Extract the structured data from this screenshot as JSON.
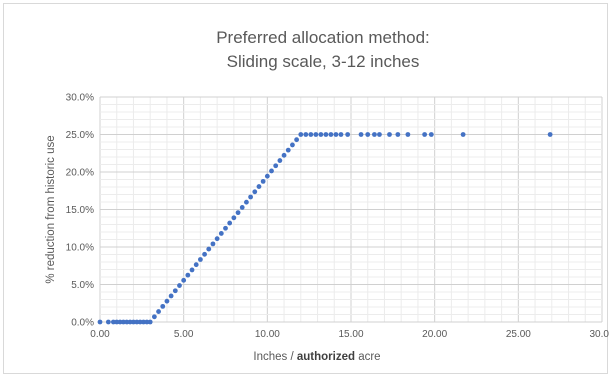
{
  "chart_data": {
    "type": "scatter",
    "title_lines": [
      "Preferred allocation method:",
      "Sliding scale, 3-12 inches"
    ],
    "xlabel_parts": [
      {
        "text": "Inches / ",
        "bold": false
      },
      {
        "text": "authorized",
        "bold": true
      },
      {
        "text": " acre",
        "bold": false
      }
    ],
    "ylabel": "% reduction from historic use",
    "xlim": [
      0,
      30
    ],
    "ylim": [
      0,
      0.3
    ],
    "x_ticks": [
      0,
      5,
      10,
      15,
      20,
      25,
      30
    ],
    "x_tick_labels": [
      "0.00",
      "5.00",
      "10.00",
      "15.00",
      "20.00",
      "25.00",
      "30.00"
    ],
    "y_ticks": [
      0,
      0.05,
      0.1,
      0.15,
      0.2,
      0.25,
      0.3
    ],
    "y_tick_labels": [
      "0.0%",
      "5.0%",
      "10.0%",
      "15.0%",
      "20.0%",
      "25.0%",
      "30.0%"
    ],
    "grid": {
      "major": true,
      "minor": true
    },
    "series": [
      {
        "color": "#4472c4",
        "points": [
          [
            0.0,
            0.0
          ],
          [
            0.5,
            0.0
          ],
          [
            0.8,
            0.0
          ],
          [
            1.0,
            0.0
          ],
          [
            1.2,
            0.0
          ],
          [
            1.4,
            0.0
          ],
          [
            1.6,
            0.0
          ],
          [
            1.8,
            0.0
          ],
          [
            2.0,
            0.0
          ],
          [
            2.2,
            0.0
          ],
          [
            2.4,
            0.0
          ],
          [
            2.6,
            0.0
          ],
          [
            2.8,
            0.0
          ],
          [
            3.0,
            0.0
          ],
          [
            3.25,
            0.00694
          ],
          [
            3.5,
            0.01389
          ],
          [
            3.75,
            0.02083
          ],
          [
            4.0,
            0.02778
          ],
          [
            4.25,
            0.03472
          ],
          [
            4.5,
            0.04167
          ],
          [
            4.75,
            0.04861
          ],
          [
            5.0,
            0.05556
          ],
          [
            5.25,
            0.0625
          ],
          [
            5.5,
            0.06944
          ],
          [
            5.75,
            0.07639
          ],
          [
            6.0,
            0.08333
          ],
          [
            6.25,
            0.09028
          ],
          [
            6.5,
            0.09722
          ],
          [
            6.75,
            0.10417
          ],
          [
            7.0,
            0.11111
          ],
          [
            7.25,
            0.11806
          ],
          [
            7.5,
            0.125
          ],
          [
            7.75,
            0.13194
          ],
          [
            8.0,
            0.13889
          ],
          [
            8.25,
            0.14583
          ],
          [
            8.5,
            0.15278
          ],
          [
            8.75,
            0.15972
          ],
          [
            9.0,
            0.16667
          ],
          [
            9.25,
            0.17361
          ],
          [
            9.5,
            0.18056
          ],
          [
            9.75,
            0.1875
          ],
          [
            10.0,
            0.19444
          ],
          [
            10.25,
            0.20139
          ],
          [
            10.5,
            0.20833
          ],
          [
            10.75,
            0.21528
          ],
          [
            11.0,
            0.22222
          ],
          [
            11.25,
            0.22917
          ],
          [
            11.5,
            0.23611
          ],
          [
            11.75,
            0.24306
          ],
          [
            12.0,
            0.25
          ],
          [
            12.3,
            0.25
          ],
          [
            12.6,
            0.25
          ],
          [
            12.9,
            0.25
          ],
          [
            13.2,
            0.25
          ],
          [
            13.5,
            0.25
          ],
          [
            13.8,
            0.25
          ],
          [
            14.1,
            0.25
          ],
          [
            14.4,
            0.25
          ],
          [
            14.8,
            0.25
          ],
          [
            15.6,
            0.25
          ],
          [
            16.0,
            0.25
          ],
          [
            16.4,
            0.25
          ],
          [
            16.7,
            0.25
          ],
          [
            17.3,
            0.25
          ],
          [
            17.8,
            0.25
          ],
          [
            18.4,
            0.25
          ],
          [
            19.4,
            0.25
          ],
          [
            19.8,
            0.25
          ],
          [
            21.7,
            0.25
          ],
          [
            26.9,
            0.25
          ]
        ]
      }
    ]
  }
}
